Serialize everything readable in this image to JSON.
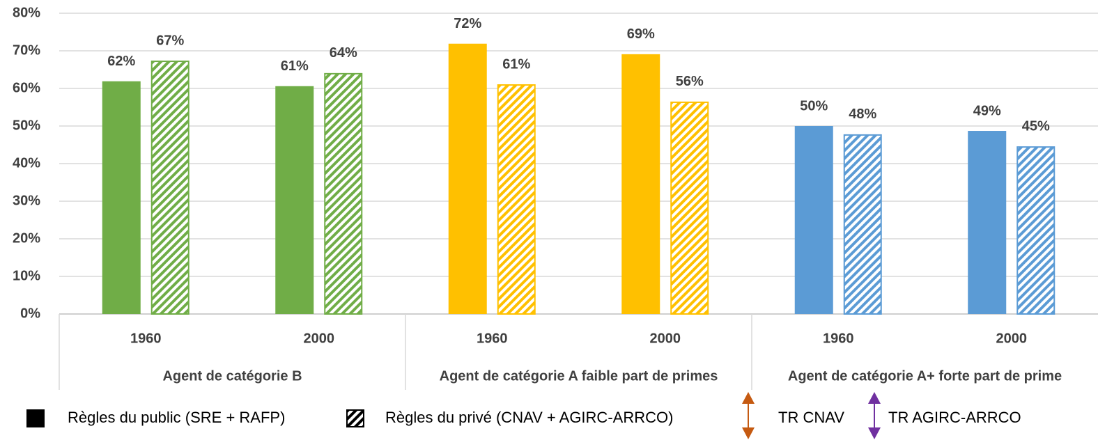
{
  "chart_data": {
    "type": "bar",
    "categories": [
      "1960",
      "2000",
      "1960",
      "2000",
      "1960",
      "2000"
    ],
    "groups": [
      "Agent de catégorie B",
      "Agent de catégorie A faible part de primes",
      "Agent de catégorie A+ forte part de prime"
    ],
    "group_colors": [
      "#70ad47",
      "#ffc000",
      "#5b9bd5"
    ],
    "series": [
      {
        "name": "Règles du public (SRE + RAFP)",
        "color": "#000000",
        "pattern": "solid",
        "values": [
          61.9,
          60.6,
          71.9,
          69.1,
          50.0,
          48.7
        ],
        "value_labels": [
          "62%",
          "61%",
          "72%",
          "69%",
          "50%",
          "49%"
        ]
      },
      {
        "name": "Règles du privé (CNAV + AGIRC-ARRCO)",
        "color": "#000000",
        "pattern": "hatch",
        "values": [
          67.4,
          64.1,
          61.1,
          56.5,
          47.8,
          44.6
        ],
        "value_labels": [
          "67%",
          "64%",
          "61%",
          "56%",
          "48%",
          "45%"
        ]
      }
    ],
    "legend_extra": [
      {
        "name": "TR CNAV",
        "color": "#c55a11"
      },
      {
        "name": "TR AGIRC-ARRCO",
        "color": "#7030a0"
      }
    ],
    "ylim": [
      0,
      80
    ],
    "yticks": [
      {
        "value": 0,
        "label": "0%"
      },
      {
        "value": 10,
        "label": "10%"
      },
      {
        "value": 20,
        "label": "20%"
      },
      {
        "value": 30,
        "label": "30%"
      },
      {
        "value": 40,
        "label": "40%"
      },
      {
        "value": 50,
        "label": "50%"
      },
      {
        "value": 60,
        "label": "60%"
      },
      {
        "value": 70,
        "label": "70%"
      },
      {
        "value": 80,
        "label": "80%"
      }
    ],
    "grid": true
  }
}
